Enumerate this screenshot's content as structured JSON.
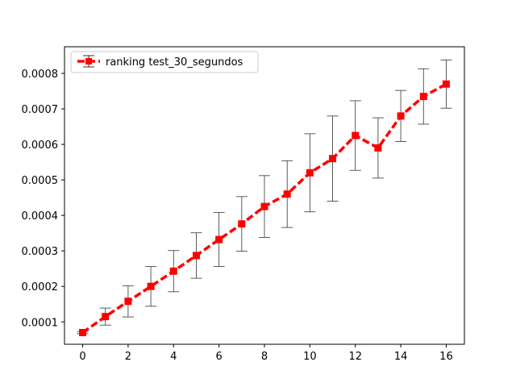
{
  "chart_data": {
    "type": "line",
    "title": "",
    "xlabel": "",
    "ylabel": "",
    "xlim": [
      -0.8,
      16.8
    ],
    "ylim": [
      3.7e-05,
      0.000875
    ],
    "xticks": [
      0,
      2,
      4,
      6,
      8,
      10,
      12,
      14,
      16
    ],
    "yticks": [
      0.0001,
      0.0002,
      0.0003,
      0.0004,
      0.0005,
      0.0006,
      0.0007,
      0.0008
    ],
    "ytick_labels": [
      "0.0001",
      "0.0002",
      "0.0003",
      "0.0004",
      "0.0005",
      "0.0006",
      "0.0007",
      "0.0008"
    ],
    "grid": false,
    "legend_position": "top-left",
    "series": [
      {
        "name": "ranking test_30_segundos",
        "color": "#ff0000",
        "line_style": "dashed",
        "marker": "square",
        "errorbar_color": "#333333",
        "x": [
          0,
          1,
          2,
          3,
          4,
          5,
          6,
          7,
          8,
          9,
          10,
          11,
          12,
          13,
          14,
          15,
          16
        ],
        "y": [
          7e-05,
          0.000115,
          0.000158,
          0.0002,
          0.000243,
          0.000287,
          0.000332,
          0.000376,
          0.000425,
          0.00046,
          0.00052,
          0.00056,
          0.000625,
          0.00059,
          0.00068,
          0.000735,
          0.00077
        ],
        "err": [
          3e-06,
          2.4e-05,
          4.4e-05,
          5.6e-05,
          5.8e-05,
          6.4e-05,
          7.6e-05,
          7.7e-05,
          8.7e-05,
          9.4e-05,
          0.00011,
          0.00012,
          9.8e-05,
          8.5e-05,
          7.2e-05,
          7.8e-05,
          6.8e-05
        ]
      }
    ]
  }
}
